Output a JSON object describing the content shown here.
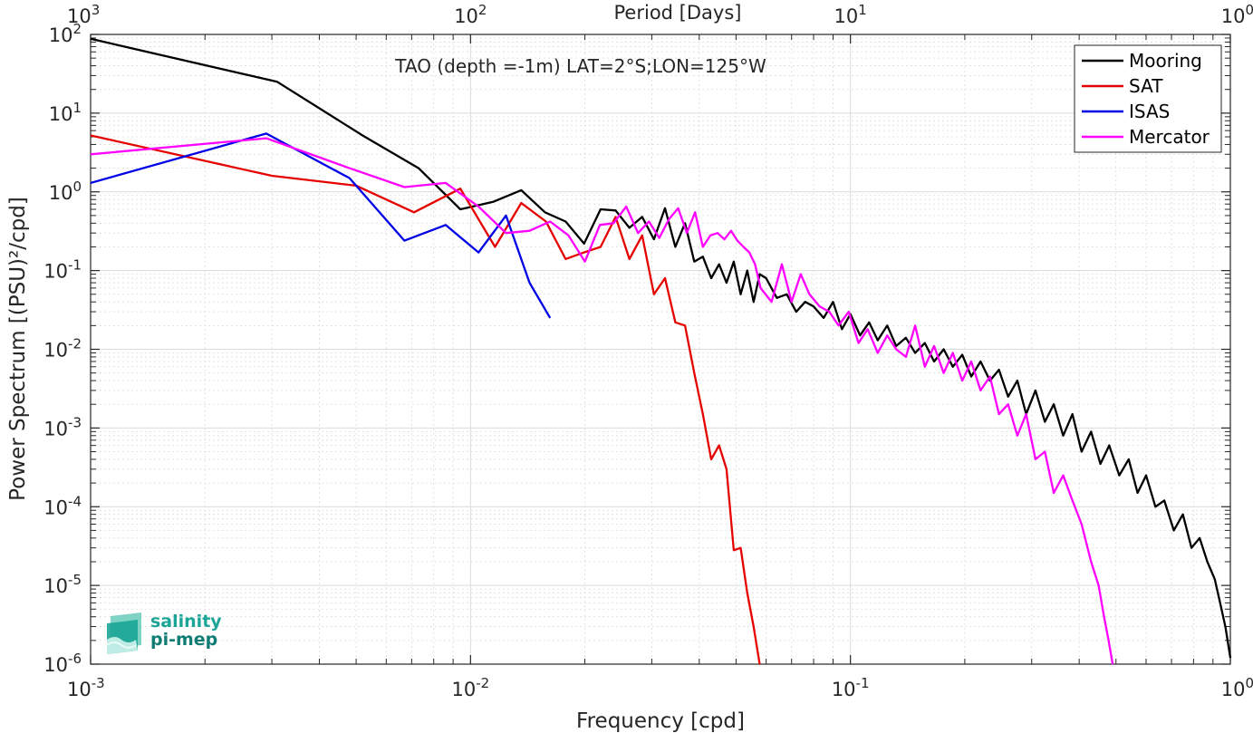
{
  "colors": {
    "mooring": "#000000",
    "sat": "#e60000",
    "isas": "#0000e6",
    "mercator": "#ff00ff",
    "grid": "#dcdcdc",
    "axis": "#262626",
    "logo_teal": "#1aa596",
    "logo_dark": "#0f7d73"
  },
  "logo": {
    "line1": "salinity",
    "line2": "pi-mep",
    "icon": "wave-layers-icon"
  },
  "chart_data": {
    "type": "line",
    "title": "TAO (depth =-1m) LAT=2°S;LON=125°W",
    "xlabel": "Frequency [cpd]",
    "ylabel": "Power Spectrum [(PSU)²/cpd]",
    "x2label": "Period [Days]",
    "x_scale": "log",
    "y_scale": "log",
    "xlim": [
      0.001,
      1
    ],
    "ylim": [
      1e-06,
      100
    ],
    "grid": true,
    "legend_position": "top-right",
    "x_ticks": [
      {
        "value": 0.001,
        "base": "10",
        "exp": "-3"
      },
      {
        "value": 0.01,
        "base": "10",
        "exp": "-2"
      },
      {
        "value": 0.1,
        "base": "10",
        "exp": "-1"
      },
      {
        "value": 1,
        "base": "10",
        "exp": "0"
      }
    ],
    "x2_ticks": [
      {
        "value": 0.001,
        "base": "10",
        "exp": "3"
      },
      {
        "value": 0.01,
        "base": "10",
        "exp": "2"
      },
      {
        "value": 0.1,
        "base": "10",
        "exp": "1"
      },
      {
        "value": 1,
        "base": "10",
        "exp": "0"
      }
    ],
    "y_ticks": [
      {
        "value": 100,
        "base": "10",
        "exp": "2"
      },
      {
        "value": 10,
        "base": "10",
        "exp": "1"
      },
      {
        "value": 1,
        "base": "10",
        "exp": "0"
      },
      {
        "value": 0.1,
        "base": "10",
        "exp": "-1"
      },
      {
        "value": 0.01,
        "base": "10",
        "exp": "-2"
      },
      {
        "value": 0.001,
        "base": "10",
        "exp": "-3"
      },
      {
        "value": 0.0001,
        "base": "10",
        "exp": "-4"
      },
      {
        "value": 1e-05,
        "base": "10",
        "exp": "-5"
      },
      {
        "value": 1e-06,
        "base": "10",
        "exp": "-6"
      }
    ],
    "series": [
      {
        "name": "Mooring",
        "color": "#000000",
        "x": [
          0.001,
          0.0031,
          0.0052,
          0.0073,
          0.0094,
          0.0115,
          0.0136,
          0.0157,
          0.0178,
          0.0199,
          0.022,
          0.0241,
          0.0262,
          0.0283,
          0.0304,
          0.0325,
          0.0346,
          0.0367,
          0.0388,
          0.0409,
          0.043,
          0.0451,
          0.0472,
          0.0493,
          0.0514,
          0.0535,
          0.0556,
          0.0577,
          0.06,
          0.064,
          0.068,
          0.072,
          0.076,
          0.08,
          0.085,
          0.09,
          0.095,
          0.1,
          0.106,
          0.112,
          0.118,
          0.125,
          0.132,
          0.14,
          0.148,
          0.157,
          0.166,
          0.176,
          0.186,
          0.197,
          0.208,
          0.22,
          0.233,
          0.246,
          0.26,
          0.275,
          0.29,
          0.307,
          0.325,
          0.343,
          0.363,
          0.384,
          0.406,
          0.43,
          0.455,
          0.48,
          0.51,
          0.54,
          0.57,
          0.6,
          0.635,
          0.67,
          0.71,
          0.75,
          0.79,
          0.83,
          0.87,
          0.91,
          0.94,
          0.97,
          1.0
        ],
        "y": [
          88,
          25,
          5.2,
          2.0,
          0.6,
          0.75,
          1.05,
          0.55,
          0.42,
          0.22,
          0.6,
          0.58,
          0.35,
          0.48,
          0.25,
          0.62,
          0.2,
          0.4,
          0.13,
          0.15,
          0.08,
          0.12,
          0.07,
          0.13,
          0.05,
          0.1,
          0.04,
          0.09,
          0.08,
          0.045,
          0.05,
          0.03,
          0.04,
          0.035,
          0.025,
          0.04,
          0.018,
          0.028,
          0.015,
          0.022,
          0.013,
          0.02,
          0.011,
          0.014,
          0.009,
          0.012,
          0.007,
          0.01,
          0.006,
          0.0085,
          0.0045,
          0.007,
          0.004,
          0.0055,
          0.0025,
          0.004,
          0.0015,
          0.003,
          0.0012,
          0.002,
          0.0008,
          0.0015,
          0.0005,
          0.0009,
          0.00035,
          0.0006,
          0.00025,
          0.0004,
          0.00015,
          0.00025,
          0.0001,
          0.00012,
          5e-05,
          8e-05,
          3e-05,
          4e-05,
          2e-05,
          1.2e-05,
          6e-06,
          3e-06,
          1.2e-06
        ]
      },
      {
        "name": "SAT",
        "color": "#e60000",
        "x": [
          0.001,
          0.003,
          0.005,
          0.0071,
          0.0094,
          0.0116,
          0.0136,
          0.0158,
          0.0178,
          0.0199,
          0.022,
          0.0241,
          0.0262,
          0.0283,
          0.0304,
          0.0325,
          0.0346,
          0.0367,
          0.0388,
          0.0409,
          0.043,
          0.0451,
          0.0472,
          0.0493,
          0.0514,
          0.0535,
          0.0556,
          0.0577
        ],
        "y": [
          5.2,
          1.6,
          1.2,
          0.55,
          1.1,
          0.2,
          0.72,
          0.42,
          0.14,
          0.17,
          0.2,
          0.48,
          0.14,
          0.28,
          0.05,
          0.08,
          0.022,
          0.02,
          0.005,
          0.0015,
          0.0004,
          0.0006,
          0.0003,
          2.8e-05,
          3e-05,
          8e-06,
          3e-06,
          1e-06
        ]
      },
      {
        "name": "ISAS",
        "color": "#0000e6",
        "x": [
          0.001,
          0.0029,
          0.0048,
          0.0067,
          0.0086,
          0.0105,
          0.0124,
          0.0143,
          0.0162
        ],
        "y": [
          1.3,
          5.5,
          1.5,
          0.24,
          0.38,
          0.17,
          0.5,
          0.07,
          0.025
        ]
      },
      {
        "name": "Mercator",
        "color": "#ff00ff",
        "x": [
          0.001,
          0.0029,
          0.0048,
          0.0067,
          0.0086,
          0.0105,
          0.0124,
          0.0143,
          0.0162,
          0.0181,
          0.02,
          0.0219,
          0.0238,
          0.0257,
          0.0276,
          0.0295,
          0.0314,
          0.0333,
          0.0352,
          0.0371,
          0.039,
          0.0409,
          0.0428,
          0.0447,
          0.0466,
          0.0485,
          0.0504,
          0.0523,
          0.0542,
          0.0561,
          0.058,
          0.062,
          0.066,
          0.07,
          0.074,
          0.078,
          0.083,
          0.088,
          0.093,
          0.099,
          0.105,
          0.111,
          0.118,
          0.125,
          0.132,
          0.14,
          0.148,
          0.157,
          0.166,
          0.176,
          0.186,
          0.197,
          0.208,
          0.22,
          0.233,
          0.246,
          0.26,
          0.275,
          0.29,
          0.307,
          0.325,
          0.343,
          0.363,
          0.384,
          0.406,
          0.43,
          0.45,
          0.465,
          0.478,
          0.49
        ],
        "y": [
          3.0,
          4.8,
          2.0,
          1.15,
          1.3,
          0.65,
          0.3,
          0.32,
          0.42,
          0.28,
          0.13,
          0.38,
          0.4,
          0.65,
          0.3,
          0.42,
          0.26,
          0.45,
          0.62,
          0.3,
          0.55,
          0.2,
          0.28,
          0.3,
          0.25,
          0.32,
          0.24,
          0.2,
          0.17,
          0.12,
          0.06,
          0.04,
          0.12,
          0.04,
          0.09,
          0.05,
          0.035,
          0.03,
          0.02,
          0.03,
          0.012,
          0.018,
          0.009,
          0.015,
          0.01,
          0.008,
          0.02,
          0.006,
          0.011,
          0.005,
          0.009,
          0.004,
          0.007,
          0.003,
          0.0045,
          0.0015,
          0.002,
          0.0008,
          0.0015,
          0.0004,
          0.0005,
          0.00015,
          0.00025,
          0.00012,
          6e-05,
          2e-05,
          1e-05,
          4e-06,
          2e-06,
          1e-06
        ]
      }
    ]
  }
}
